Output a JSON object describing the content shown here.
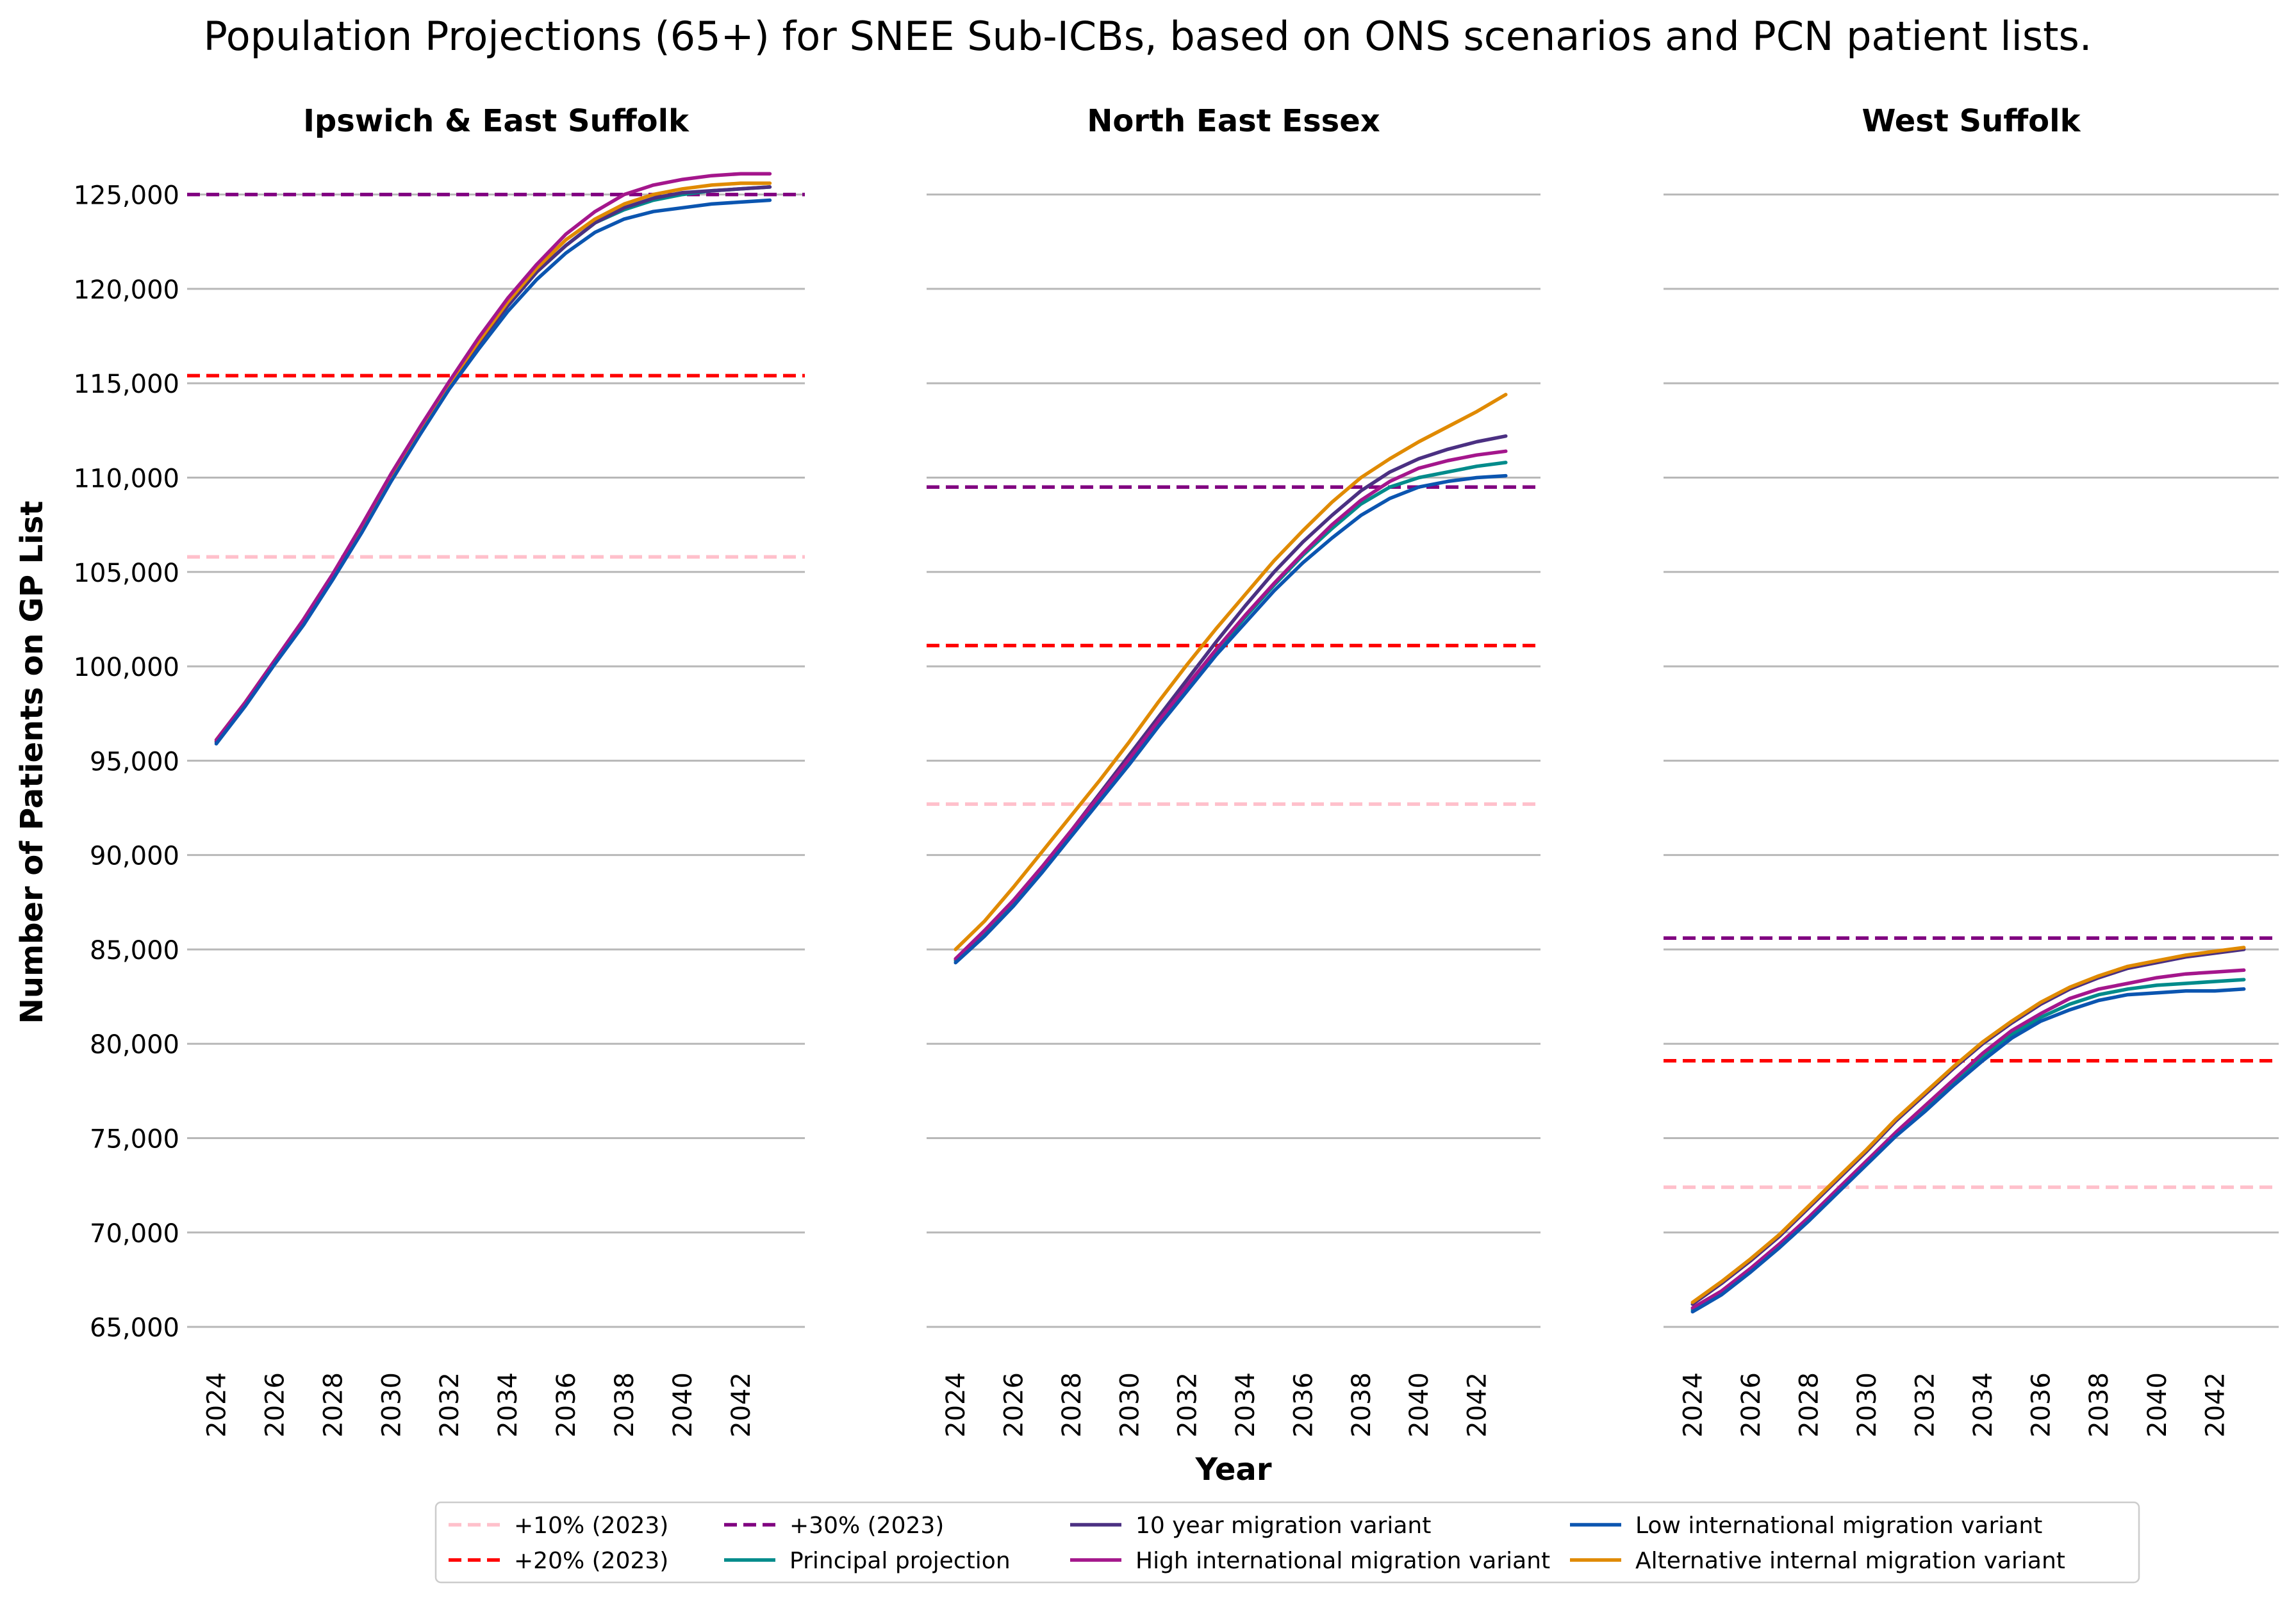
{
  "chart_data": {
    "type": "line",
    "title": "Population Projections (65+) for SNEE Sub-ICBs, based on ONS scenarios and PCN patient lists.",
    "xlabel": "Year",
    "ylabel": "Number of Patients on GP List",
    "ylim": [
      63000,
      127500
    ],
    "xlim": [
      2023.0,
      2044.2
    ],
    "y_ticks": [
      65000,
      70000,
      75000,
      80000,
      85000,
      90000,
      95000,
      100000,
      105000,
      110000,
      115000,
      120000,
      125000
    ],
    "y_tick_labels": [
      "65,000",
      "70,000",
      "75,000",
      "80,000",
      "85,000",
      "90,000",
      "95,000",
      "100,000",
      "105,000",
      "110,000",
      "115,000",
      "120,000",
      "125,000"
    ],
    "x_ticks": [
      2024,
      2026,
      2028,
      2030,
      2032,
      2034,
      2036,
      2038,
      2040,
      2042
    ],
    "x_tick_labels": [
      "2024",
      "2026",
      "2028",
      "2030",
      "2032",
      "2034",
      "2036",
      "2038",
      "2040",
      "2042"
    ],
    "grid": "horizontal",
    "legend_position": "bottom-center",
    "x": [
      2024,
      2025,
      2026,
      2027,
      2028,
      2029,
      2030,
      2031,
      2032,
      2033,
      2034,
      2035,
      2036,
      2037,
      2038,
      2039,
      2040,
      2041,
      2042,
      2043
    ],
    "legend": [
      {
        "key": "p10",
        "label": "+10% (2023)",
        "color": "#ffc0cb",
        "dashed": true
      },
      {
        "key": "p20",
        "label": "+20% (2023)",
        "color": "#ff0000",
        "dashed": true
      },
      {
        "key": "p30",
        "label": "+30% (2023)",
        "color": "#800080",
        "dashed": true
      },
      {
        "key": "principal",
        "label": "Principal projection",
        "color": "#008b8b",
        "dashed": false
      },
      {
        "key": "tenyear",
        "label": "10 year migration variant",
        "color": "#4b3082",
        "dashed": false
      },
      {
        "key": "high",
        "label": "High international migration variant",
        "color": "#a4168c",
        "dashed": false
      },
      {
        "key": "low",
        "label": "Low international migration variant",
        "color": "#0b55b0",
        "dashed": false
      },
      {
        "key": "alt",
        "label": "Alternative internal migration variant",
        "color": "#e08a00",
        "dashed": false
      }
    ],
    "series_order": [
      "principal",
      "tenyear",
      "alt",
      "high",
      "low"
    ],
    "panels": [
      {
        "title": "Ipswich & East Suffolk",
        "thresholds": {
          "p10": 105800,
          "p20": 115400,
          "p30": 125000
        },
        "series": {
          "principal": [
            96000,
            98000,
            100200,
            102300,
            104700,
            107300,
            110000,
            112500,
            114900,
            117100,
            119100,
            120900,
            122300,
            123500,
            124200,
            124700,
            125000,
            125200,
            125300,
            125400
          ],
          "tenyear": [
            96000,
            98000,
            100200,
            102300,
            104700,
            107300,
            110000,
            112500,
            114900,
            117100,
            119100,
            120900,
            122300,
            123500,
            124300,
            124800,
            125100,
            125200,
            125300,
            125400
          ],
          "alt": [
            96100,
            98100,
            100300,
            102400,
            104800,
            107400,
            110100,
            112600,
            115000,
            117200,
            119300,
            121100,
            122600,
            123700,
            124500,
            125000,
            125300,
            125500,
            125600,
            125600
          ],
          "high": [
            96100,
            98100,
            100300,
            102500,
            104900,
            107500,
            110200,
            112700,
            115100,
            117400,
            119500,
            121300,
            122900,
            124100,
            125000,
            125500,
            125800,
            126000,
            126100,
            126100
          ],
          "low": [
            95900,
            97900,
            100100,
            102200,
            104600,
            107100,
            109800,
            112300,
            114700,
            116800,
            118800,
            120500,
            121900,
            123000,
            123700,
            124100,
            124300,
            124500,
            124600,
            124700
          ]
        }
      },
      {
        "title": "North East Essex",
        "thresholds": {
          "p10": 92700,
          "p20": 101100,
          "p30": 109500
        },
        "series": {
          "principal": [
            84400,
            85900,
            87500,
            89300,
            91200,
            93100,
            95000,
            97000,
            98900,
            100800,
            102600,
            104300,
            105900,
            107300,
            108600,
            109500,
            110000,
            110300,
            110600,
            110800
          ],
          "tenyear": [
            84500,
            86000,
            87600,
            89400,
            91300,
            93300,
            95300,
            97300,
            99300,
            101300,
            103200,
            105000,
            106600,
            108000,
            109300,
            110300,
            111000,
            111500,
            111900,
            112200
          ],
          "alt": [
            85000,
            86500,
            88300,
            90200,
            92100,
            94000,
            96000,
            98100,
            100100,
            102000,
            103800,
            105600,
            107200,
            108700,
            110000,
            111000,
            111900,
            112700,
            113500,
            114400
          ],
          "high": [
            84500,
            86000,
            87600,
            89400,
            91300,
            93200,
            95100,
            97100,
            99000,
            100900,
            102700,
            104400,
            106000,
            107500,
            108800,
            109800,
            110500,
            110900,
            111200,
            111400
          ],
          "low": [
            84300,
            85700,
            87300,
            89100,
            91000,
            92900,
            94800,
            96800,
            98700,
            100600,
            102300,
            104000,
            105500,
            106800,
            108000,
            108900,
            109500,
            109800,
            110000,
            110100
          ]
        }
      },
      {
        "title": "West Suffolk",
        "thresholds": {
          "p10": 72400,
          "p20": 79100,
          "p30": 85600
        },
        "series": {
          "principal": [
            65900,
            66800,
            68000,
            69300,
            70700,
            72200,
            73700,
            75200,
            76600,
            78000,
            79300,
            80500,
            81400,
            82100,
            82600,
            82900,
            83100,
            83200,
            83300,
            83400
          ],
          "tenyear": [
            66200,
            67300,
            68500,
            69800,
            71300,
            72800,
            74300,
            75900,
            77300,
            78700,
            80000,
            81100,
            82100,
            82900,
            83500,
            84000,
            84300,
            84600,
            84800,
            85000
          ],
          "alt": [
            66300,
            67400,
            68600,
            69900,
            71400,
            72900,
            74400,
            76000,
            77400,
            78800,
            80100,
            81200,
            82200,
            83000,
            83600,
            84100,
            84400,
            84700,
            84900,
            85100
          ],
          "high": [
            66000,
            66900,
            68100,
            69400,
            70800,
            72300,
            73800,
            75300,
            76700,
            78100,
            79500,
            80700,
            81600,
            82400,
            82900,
            83200,
            83500,
            83700,
            83800,
            83900
          ],
          "low": [
            65800,
            66700,
            67900,
            69200,
            70600,
            72100,
            73600,
            75100,
            76400,
            77800,
            79100,
            80300,
            81200,
            81800,
            82300,
            82600,
            82700,
            82800,
            82800,
            82900
          ]
        }
      }
    ]
  }
}
